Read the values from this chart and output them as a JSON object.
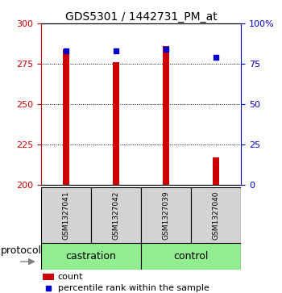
{
  "title": "GDS5301 / 1442731_PM_at",
  "samples": [
    "GSM1327041",
    "GSM1327042",
    "GSM1327039",
    "GSM1327040"
  ],
  "bar_values": [
    284,
    276,
    286,
    217
  ],
  "bar_bottom": 200,
  "percentile_values": [
    83,
    83,
    84,
    79
  ],
  "ylim_left": [
    200,
    300
  ],
  "ylim_right": [
    0,
    100
  ],
  "yticks_left": [
    200,
    225,
    250,
    275,
    300
  ],
  "yticks_right": [
    0,
    25,
    50,
    75,
    100
  ],
  "ytick_labels_right": [
    "0",
    "25",
    "50",
    "75",
    "100%"
  ],
  "bar_color": "#cc0000",
  "percentile_color": "#0000cc",
  "left_axis_color": "#cc0000",
  "right_axis_color": "#0000cc",
  "group_labels": [
    "castration",
    "control"
  ],
  "group_color": "#90ee90",
  "protocol_label": "protocol",
  "legend_count_label": "count",
  "legend_percentile_label": "percentile rank within the sample",
  "background_color": "#ffffff",
  "sample_box_color": "#d3d3d3",
  "bar_width": 0.12,
  "title_fontsize": 10,
  "tick_fontsize": 8,
  "sample_fontsize": 6.5,
  "group_fontsize": 9,
  "legend_fontsize": 8,
  "protocol_fontsize": 9
}
